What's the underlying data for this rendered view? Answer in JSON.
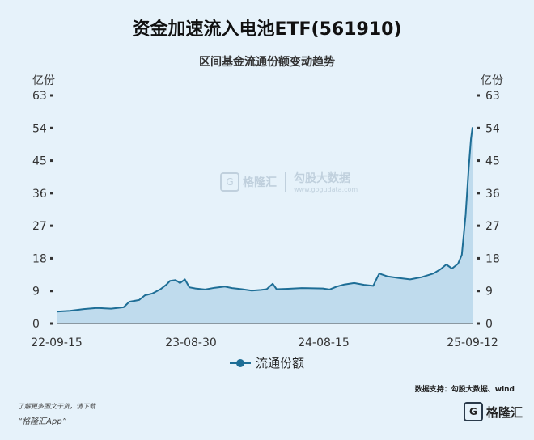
{
  "header": {
    "title": "资金加速流入电池ETF(561910)",
    "subtitle": "区间基金流通份额变动趋势"
  },
  "watermark": {
    "logo_char": "G",
    "brand": "格隆汇",
    "name": "勾股大数据",
    "url": "www.gogudata.com"
  },
  "legend": {
    "label": "流通份额"
  },
  "source": "数据支持：勾股大数据、wind",
  "footer": {
    "note1": "了解更多图文干货，请下载",
    "note2": "“格隆汇App”",
    "brand_logo_char": "G",
    "brand_name": "格隆汇"
  },
  "colors": {
    "line": "#1e6e96",
    "area": "#b7d7ea",
    "background": "#e6f2fa"
  },
  "chart_data": {
    "type": "area",
    "ylabel_left": "亿份",
    "ylabel_right": "亿份",
    "ylim": [
      0,
      63
    ],
    "yticks": [
      0,
      9,
      18,
      27,
      36,
      45,
      54,
      63
    ],
    "xtick_labels": [
      "22-09-15",
      "23-08-30",
      "24-08-15",
      "25-09-12"
    ],
    "xlim": [
      "2022-09-15",
      "2025-09-12"
    ],
    "grid": false,
    "legend_position": "bottom",
    "series": [
      {
        "name": "流通份额",
        "points": [
          [
            "2022-09-15",
            3.3
          ],
          [
            "2022-10-20",
            3.5
          ],
          [
            "2022-11-25",
            4.0
          ],
          [
            "2022-12-30",
            4.3
          ],
          [
            "2023-02-05",
            4.1
          ],
          [
            "2023-03-10",
            4.5
          ],
          [
            "2023-03-25",
            6.0
          ],
          [
            "2023-04-20",
            6.5
          ],
          [
            "2023-05-05",
            7.8
          ],
          [
            "2023-05-25",
            8.3
          ],
          [
            "2023-06-15",
            9.5
          ],
          [
            "2023-07-01",
            10.8
          ],
          [
            "2023-07-10",
            11.8
          ],
          [
            "2023-07-25",
            12.0
          ],
          [
            "2023-08-05",
            11.2
          ],
          [
            "2023-08-18",
            12.2
          ],
          [
            "2023-08-30",
            10.0
          ],
          [
            "2023-09-15",
            9.7
          ],
          [
            "2023-10-10",
            9.4
          ],
          [
            "2023-11-05",
            9.9
          ],
          [
            "2023-12-01",
            10.2
          ],
          [
            "2023-12-20",
            9.8
          ],
          [
            "2024-01-15",
            9.5
          ],
          [
            "2024-02-10",
            9.1
          ],
          [
            "2024-03-05",
            9.3
          ],
          [
            "2024-03-20",
            9.5
          ],
          [
            "2024-04-05",
            11.0
          ],
          [
            "2024-04-15",
            9.5
          ],
          [
            "2024-05-15",
            9.6
          ],
          [
            "2024-06-20",
            9.8
          ],
          [
            "2024-08-15",
            9.7
          ],
          [
            "2024-09-01",
            9.4
          ],
          [
            "2024-09-20",
            10.2
          ],
          [
            "2024-10-10",
            10.8
          ],
          [
            "2024-11-05",
            11.2
          ],
          [
            "2024-12-01",
            10.7
          ],
          [
            "2024-12-25",
            10.4
          ],
          [
            "2025-01-05",
            12.8
          ],
          [
            "2025-01-10",
            13.8
          ],
          [
            "2025-02-01",
            13.0
          ],
          [
            "2025-03-01",
            12.6
          ],
          [
            "2025-04-01",
            12.2
          ],
          [
            "2025-05-01",
            12.8
          ],
          [
            "2025-06-01",
            13.8
          ],
          [
            "2025-06-20",
            15.0
          ],
          [
            "2025-07-05",
            16.3
          ],
          [
            "2025-07-20",
            15.2
          ],
          [
            "2025-08-05",
            16.5
          ],
          [
            "2025-08-15",
            19.0
          ],
          [
            "2025-08-25",
            30.0
          ],
          [
            "2025-09-02",
            43.0
          ],
          [
            "2025-09-08",
            51.0
          ],
          [
            "2025-09-12",
            54.2
          ]
        ]
      }
    ]
  }
}
